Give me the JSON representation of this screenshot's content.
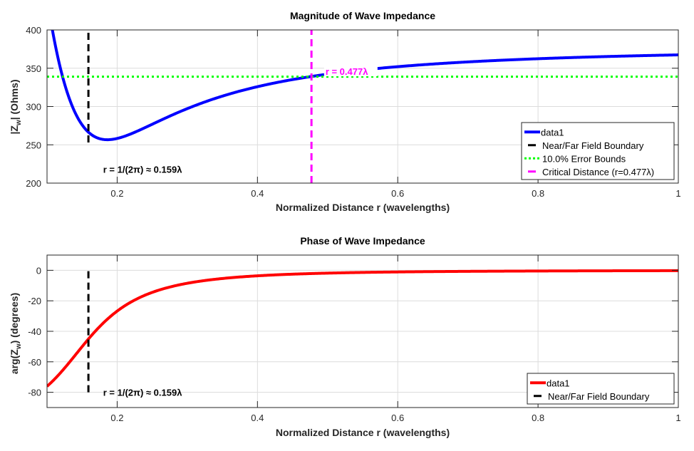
{
  "chart_data": [
    {
      "type": "line",
      "title": "Magnitude of Wave Impedance",
      "xlabel": "Normalized Distance r (wavelengths)",
      "ylabel": "|Z_w| (Ohms)",
      "ylabel_main": "|Z",
      "ylabel_sub": "w",
      "ylabel_tail": "| (Ohms)",
      "xlim": [
        0.1,
        1
      ],
      "ylim": [
        200,
        400
      ],
      "xticks": [
        0.2,
        0.4,
        0.6,
        0.8,
        1
      ],
      "xtick_labels": [
        "0.2",
        "0.4",
        "0.6",
        "0.8",
        "1"
      ],
      "yticks": [
        200,
        250,
        300,
        350,
        400
      ],
      "ytick_labels": [
        "200",
        "250",
        "300",
        "350",
        "400"
      ],
      "grid": true,
      "series": [
        {
          "name": "data1",
          "color": "#0000ff",
          "style": "solid",
          "formula": "magnitude"
        },
        {
          "name": "Near/Far Field Boundary",
          "color": "#000000",
          "style": "dashed",
          "x": [
            0.159,
            0.159
          ],
          "y": [
            253,
            400
          ]
        },
        {
          "name": "10.0% Error Bounds",
          "color": "#00ff00",
          "style": "dotted",
          "x": [
            0.1,
            1
          ],
          "y": [
            339,
            339
          ]
        },
        {
          "name": "Critical Distance (r=0.477λ)",
          "color": "#ff00ff",
          "style": "dashed",
          "x": [
            0.477,
            0.477
          ],
          "y": [
            200,
            400
          ]
        }
      ],
      "annotations": [
        {
          "text": "r = 1/(2π) ≈ 0.159λ",
          "x": 0.18,
          "y": 218,
          "color": "#000000"
        },
        {
          "text": "r = 0.477λ",
          "x": 0.497,
          "y": 346,
          "color": "#ff00ff"
        }
      ],
      "legend": {
        "position": "bottom-right",
        "entries": [
          "data1",
          "Near/Far Field Boundary",
          "10.0% Error Bounds",
          "Critical Distance (r=0.477λ)"
        ]
      }
    },
    {
      "type": "line",
      "title": "Phase of Wave Impedance",
      "xlabel": "Normalized Distance r (wavelengths)",
      "ylabel": "arg(Z_w) (degrees)",
      "ylabel_main": "arg(Z",
      "ylabel_sub": "w",
      "ylabel_tail": ") (degrees)",
      "xlim": [
        0.1,
        1
      ],
      "ylim": [
        -90,
        10
      ],
      "xticks": [
        0.2,
        0.4,
        0.6,
        0.8,
        1
      ],
      "xtick_labels": [
        "0.2",
        "0.4",
        "0.6",
        "0.8",
        "1"
      ],
      "yticks": [
        -80,
        -60,
        -40,
        -20,
        0
      ],
      "ytick_labels": [
        "-80",
        "-60",
        "-40",
        "-20",
        "0"
      ],
      "grid": true,
      "series": [
        {
          "name": "data1",
          "color": "#ff0000",
          "style": "solid",
          "formula": "phase"
        },
        {
          "name": "Near/Far Field Boundary",
          "color": "#000000",
          "style": "dashed",
          "x": [
            0.159,
            0.159
          ],
          "y": [
            -80,
            0
          ]
        }
      ],
      "annotations": [
        {
          "text": "r = 1/(2π) ≈ 0.159λ",
          "x": 0.18,
          "y": -80,
          "color": "#000000"
        }
      ],
      "legend": {
        "position": "bottom-right",
        "entries": [
          "data1",
          "Near/Far Field Boundary"
        ]
      }
    }
  ]
}
